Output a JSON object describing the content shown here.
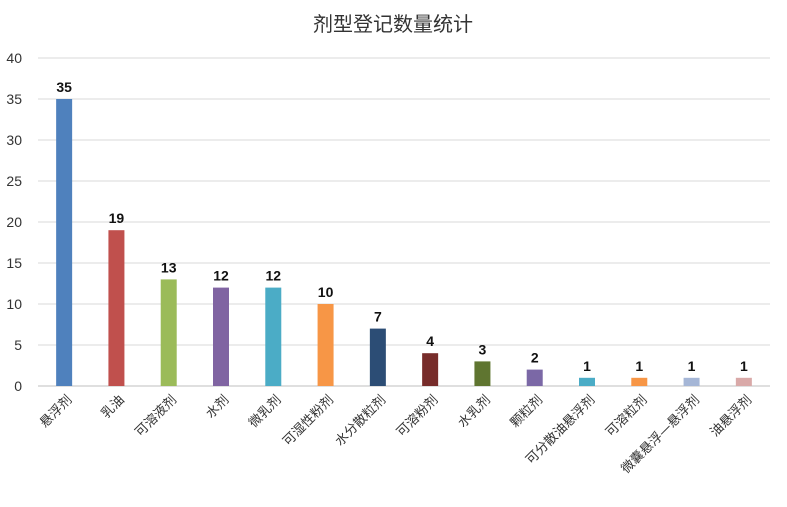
{
  "chart_data": {
    "type": "bar",
    "title": "剂型登记数量统计",
    "xlabel": "",
    "ylabel": "",
    "ylim": [
      0,
      40
    ],
    "yticks": [
      0,
      5,
      10,
      15,
      20,
      25,
      30,
      35,
      40
    ],
    "grid": true,
    "legend": "none",
    "categories": [
      "悬浮剂",
      "乳油",
      "可溶液剂",
      "水剂",
      "微乳剂",
      "可湿性粉剂",
      "水分散粒剂",
      "可溶粉剂",
      "水乳剂",
      "颗粒剂",
      "可分散油悬浮剂",
      "可溶粒剂",
      "微囊悬浮—悬浮剂",
      "油悬浮剂"
    ],
    "values": [
      35,
      19,
      13,
      12,
      12,
      10,
      7,
      4,
      3,
      2,
      1,
      1,
      1,
      1
    ],
    "colors": [
      "#4f81bd",
      "#c0504d",
      "#9bbb59",
      "#8064a2",
      "#4bacc6",
      "#f79646",
      "#2c4d75",
      "#772c2a",
      "#5f7530",
      "#7b68a6",
      "#4bacc6",
      "#f79646",
      "#a5b6d6",
      "#d9a9a8"
    ]
  }
}
